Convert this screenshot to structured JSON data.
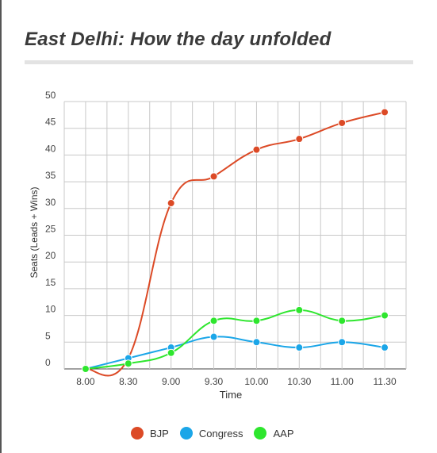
{
  "title": "East Delhi: How the day unfolded",
  "chart_data": {
    "type": "line",
    "categories": [
      "8.00",
      "8.30",
      "9.00",
      "9.30",
      "10.00",
      "10.30",
      "11.00",
      "11.30"
    ],
    "series": [
      {
        "name": "BJP",
        "color": "#dc4a26",
        "values": [
          0,
          2,
          31,
          36,
          41,
          43,
          46,
          48
        ]
      },
      {
        "name": "Congress",
        "color": "#1ba6e8",
        "values": [
          0,
          2,
          4,
          6,
          5,
          4,
          5,
          4
        ]
      },
      {
        "name": "AAP",
        "color": "#2ee62e",
        "values": [
          0,
          1,
          3,
          9,
          9,
          11,
          9,
          10
        ]
      }
    ],
    "xlabel": "Time",
    "ylabel": "Seats (Leads + Wins)",
    "ylim": [
      0,
      50
    ],
    "yticks": [
      0,
      5,
      10,
      15,
      20,
      25,
      30,
      35,
      40,
      45,
      50
    ],
    "grid": true,
    "legend_position": "bottom"
  }
}
